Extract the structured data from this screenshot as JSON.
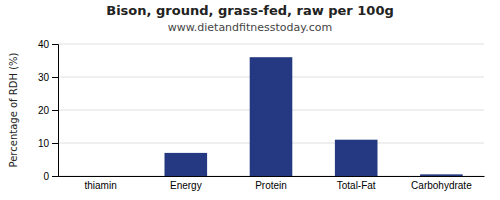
{
  "chart_data": {
    "type": "bar",
    "title": "Bison, ground, grass-fed, raw per 100g",
    "subtitle": "www.dietandfitnesstoday.com",
    "categories": [
      "thiamin",
      "Energy",
      "Protein",
      "Total-Fat",
      "Carbohydrate"
    ],
    "values": [
      0,
      7,
      36,
      11,
      0.5
    ],
    "color": "#253882",
    "ylabel": "Percentage of RDH (%)",
    "ylim": [
      0,
      40
    ],
    "yticks": [
      0,
      10,
      20,
      30,
      40
    ],
    "grid": true
  }
}
